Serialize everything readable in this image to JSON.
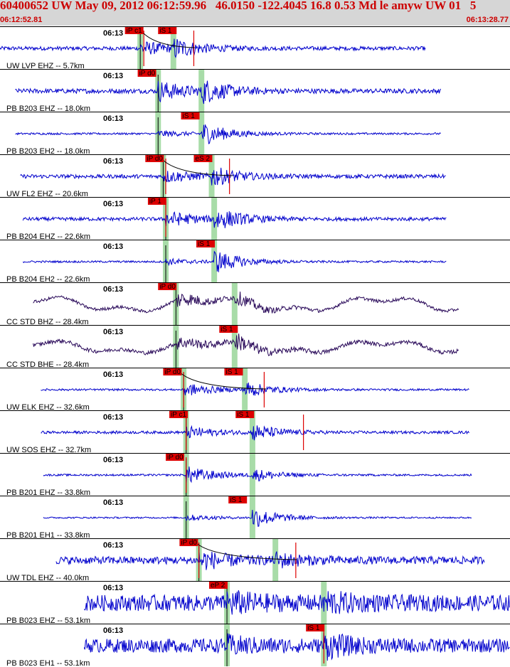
{
  "header": {
    "title": "60400652 UW May 09, 2012 06:12:59.96   46.0150 -122.4045 16.8 0.53 Md le amyw UW 01   5",
    "start_time": "06:12:52.81",
    "end_time": "06:13:28.77"
  },
  "colors": {
    "header_bg": "#d6d6d6",
    "title_text": "#cc0000",
    "trace_blue": "#0000cc",
    "trace_purple": "#2a0a5a",
    "pick_red": "#dd0000",
    "window_green": "#a8dca8"
  },
  "traces": [
    {
      "label": "UW LVP EHZ -- 5.7km",
      "time_label": "06:13",
      "color": "blue",
      "noise": 0.1,
      "start_frac": 0.0,
      "end_frac": 0.835,
      "p_frac": 0.275,
      "s_frac": 0.34,
      "p_amp": 0.35,
      "s_amp": 0.45,
      "picks": [
        {
          "text": "iP c1",
          "frac": 0.245
        },
        {
          "text": "iS 1",
          "frac": 0.31
        }
      ],
      "bands": [
        0.275,
        0.34
      ],
      "red_lines": [
        0.282,
        0.38
      ],
      "curve": true
    },
    {
      "label": "PB B203 EHZ -- 18.0km",
      "time_label": "06:13",
      "color": "blue",
      "noise": 0.12,
      "start_frac": 0.03,
      "end_frac": 0.865,
      "p_frac": 0.31,
      "s_frac": 0.395,
      "p_amp": 0.5,
      "s_amp": 0.55,
      "picks": [
        {
          "text": "iP d0",
          "frac": 0.27
        }
      ],
      "bands": [
        0.31,
        0.395
      ],
      "red_lines": [],
      "curve": false
    },
    {
      "label": "PB B203 EH2 -- 18.0km",
      "time_label": "06:13",
      "color": "blue",
      "noise": 0.05,
      "start_frac": 0.03,
      "end_frac": 0.865,
      "p_frac": 0.31,
      "s_frac": 0.395,
      "p_amp": 0.15,
      "s_amp": 0.6,
      "picks": [
        {
          "text": "iS 1",
          "frac": 0.355
        }
      ],
      "bands": [
        0.31,
        0.395
      ],
      "red_lines": [],
      "curve": false
    },
    {
      "label": "UW FL2 EHZ -- 20.6km",
      "time_label": "06:13",
      "color": "blue",
      "noise": 0.1,
      "start_frac": 0.04,
      "end_frac": 0.875,
      "p_frac": 0.32,
      "s_frac": 0.415,
      "p_amp": 0.3,
      "s_amp": 0.45,
      "picks": [
        {
          "text": "iP d0",
          "frac": 0.285
        },
        {
          "text": "eS 2",
          "frac": 0.38
        }
      ],
      "bands": [
        0.32,
        0.415
      ],
      "red_lines": [
        0.325,
        0.45
      ],
      "curve": true
    },
    {
      "label": "PB B204 EHZ -- 22.6km",
      "time_label": "06:13",
      "color": "blue",
      "noise": 0.09,
      "start_frac": 0.045,
      "end_frac": 0.875,
      "p_frac": 0.325,
      "s_frac": 0.42,
      "p_amp": 0.4,
      "s_amp": 0.55,
      "picks": [
        {
          "text": "iP 1",
          "frac": 0.29
        }
      ],
      "bands": [
        0.325,
        0.42
      ],
      "red_lines": [
        0.325
      ],
      "curve": false
    },
    {
      "label": "PB B204 EH2 -- 22.6km",
      "time_label": "06:13",
      "color": "blue",
      "noise": 0.05,
      "start_frac": 0.045,
      "end_frac": 0.875,
      "p_frac": 0.325,
      "s_frac": 0.42,
      "p_amp": 0.15,
      "s_amp": 0.6,
      "picks": [
        {
          "text": "iS 1",
          "frac": 0.385
        }
      ],
      "bands": [
        0.325,
        0.42
      ],
      "red_lines": [],
      "curve": false
    },
    {
      "label": "CC STD BHZ -- 28.4km",
      "time_label": "06:13",
      "color": "purple",
      "noise": 0.08,
      "start_frac": 0.065,
      "end_frac": 0.9,
      "p_frac": 0.345,
      "s_frac": 0.46,
      "p_amp": 0.4,
      "s_amp": 0.3,
      "picks": [
        {
          "text": "iP d0",
          "frac": 0.31
        }
      ],
      "bands": [
        0.345,
        0.46
      ],
      "red_lines": [],
      "curve": false,
      "long_period": 0.3
    },
    {
      "label": "CC STD BHE -- 28.4km",
      "time_label": "06:13",
      "color": "purple",
      "noise": 0.1,
      "start_frac": 0.065,
      "end_frac": 0.9,
      "p_frac": 0.345,
      "s_frac": 0.46,
      "p_amp": 0.3,
      "s_amp": 0.4,
      "picks": [
        {
          "text": "iS 1",
          "frac": 0.43
        }
      ],
      "bands": [
        0.345,
        0.46
      ],
      "red_lines": [],
      "curve": false,
      "long_period": 0.25
    },
    {
      "label": "UW ELK EHZ -- 32.6km",
      "time_label": "06:13",
      "color": "blue",
      "noise": 0.05,
      "start_frac": 0.08,
      "end_frac": 0.92,
      "p_frac": 0.36,
      "s_frac": 0.48,
      "p_amp": 0.35,
      "s_amp": 0.4,
      "picks": [
        {
          "text": "iP d0",
          "frac": 0.32
        },
        {
          "text": "iS 1",
          "frac": 0.44
        }
      ],
      "bands": [
        0.36,
        0.48
      ],
      "red_lines": [
        0.36,
        0.518
      ],
      "curve": true
    },
    {
      "label": "UW SOS EHZ -- 32.7km",
      "time_label": "06:13",
      "color": "blue",
      "noise": 0.07,
      "start_frac": 0.08,
      "end_frac": 0.92,
      "p_frac": 0.365,
      "s_frac": 0.495,
      "p_amp": 0.3,
      "s_amp": 0.4,
      "picks": [
        {
          "text": "iP c1",
          "frac": 0.332
        },
        {
          "text": "iS 1",
          "frac": 0.462
        }
      ],
      "bands": [
        0.365,
        0.495
      ],
      "red_lines": [
        0.365,
        0.595
      ],
      "curve": false
    },
    {
      "label": "PB B201 EHZ -- 33.8km",
      "time_label": "06:13",
      "color": "blue",
      "noise": 0.05,
      "start_frac": 0.085,
      "end_frac": 0.925,
      "p_frac": 0.365,
      "s_frac": 0.495,
      "p_amp": 0.45,
      "s_amp": 0.3,
      "picks": [
        {
          "text": "iP d0",
          "frac": 0.325
        }
      ],
      "bands": [
        0.365,
        0.495
      ],
      "red_lines": [
        0.365
      ],
      "curve": false
    },
    {
      "label": "PB B201 EH1 -- 33.8km",
      "time_label": "06:13",
      "color": "blue",
      "noise": 0.04,
      "start_frac": 0.085,
      "end_frac": 0.925,
      "p_frac": 0.365,
      "s_frac": 0.495,
      "p_amp": 0.15,
      "s_amp": 0.55,
      "picks": [
        {
          "text": "iS 1",
          "frac": 0.448
        }
      ],
      "bands": [
        0.365,
        0.495
      ],
      "red_lines": [],
      "curve": false
    },
    {
      "label": "UW TDL EHZ -- 40.0km",
      "time_label": "06:13",
      "color": "blue",
      "noise": 0.2,
      "start_frac": 0.11,
      "end_frac": 0.95,
      "p_frac": 0.39,
      "s_frac": 0.54,
      "p_amp": 0.45,
      "s_amp": 0.3,
      "picks": [
        {
          "text": "iP d0",
          "frac": 0.352
        }
      ],
      "bands": [
        0.39,
        0.54
      ],
      "red_lines": [
        0.39,
        0.58
      ],
      "curve": true
    },
    {
      "label": "PB B023 EHZ -- 53.1km",
      "time_label": "06:13",
      "color": "blue",
      "noise": 0.42,
      "start_frac": 0.165,
      "end_frac": 1.0,
      "p_frac": 0.445,
      "s_frac": 0.635,
      "p_amp": 0.4,
      "s_amp": 0.4,
      "picks": [
        {
          "text": "eP 2",
          "frac": 0.41
        }
      ],
      "bands": [
        0.445,
        0.635
      ],
      "red_lines": [],
      "curve": false
    },
    {
      "label": "PB B023 EH1 -- 53.1km",
      "time_label": "06:13",
      "color": "blue",
      "noise": 0.36,
      "start_frac": 0.165,
      "end_frac": 1.0,
      "p_frac": 0.445,
      "s_frac": 0.635,
      "p_amp": 0.3,
      "s_amp": 0.5,
      "picks": [
        {
          "text": "iS 1",
          "frac": 0.6
        }
      ],
      "bands": [
        0.445,
        0.635
      ],
      "red_lines": [
        0.635
      ],
      "curve": false
    }
  ]
}
